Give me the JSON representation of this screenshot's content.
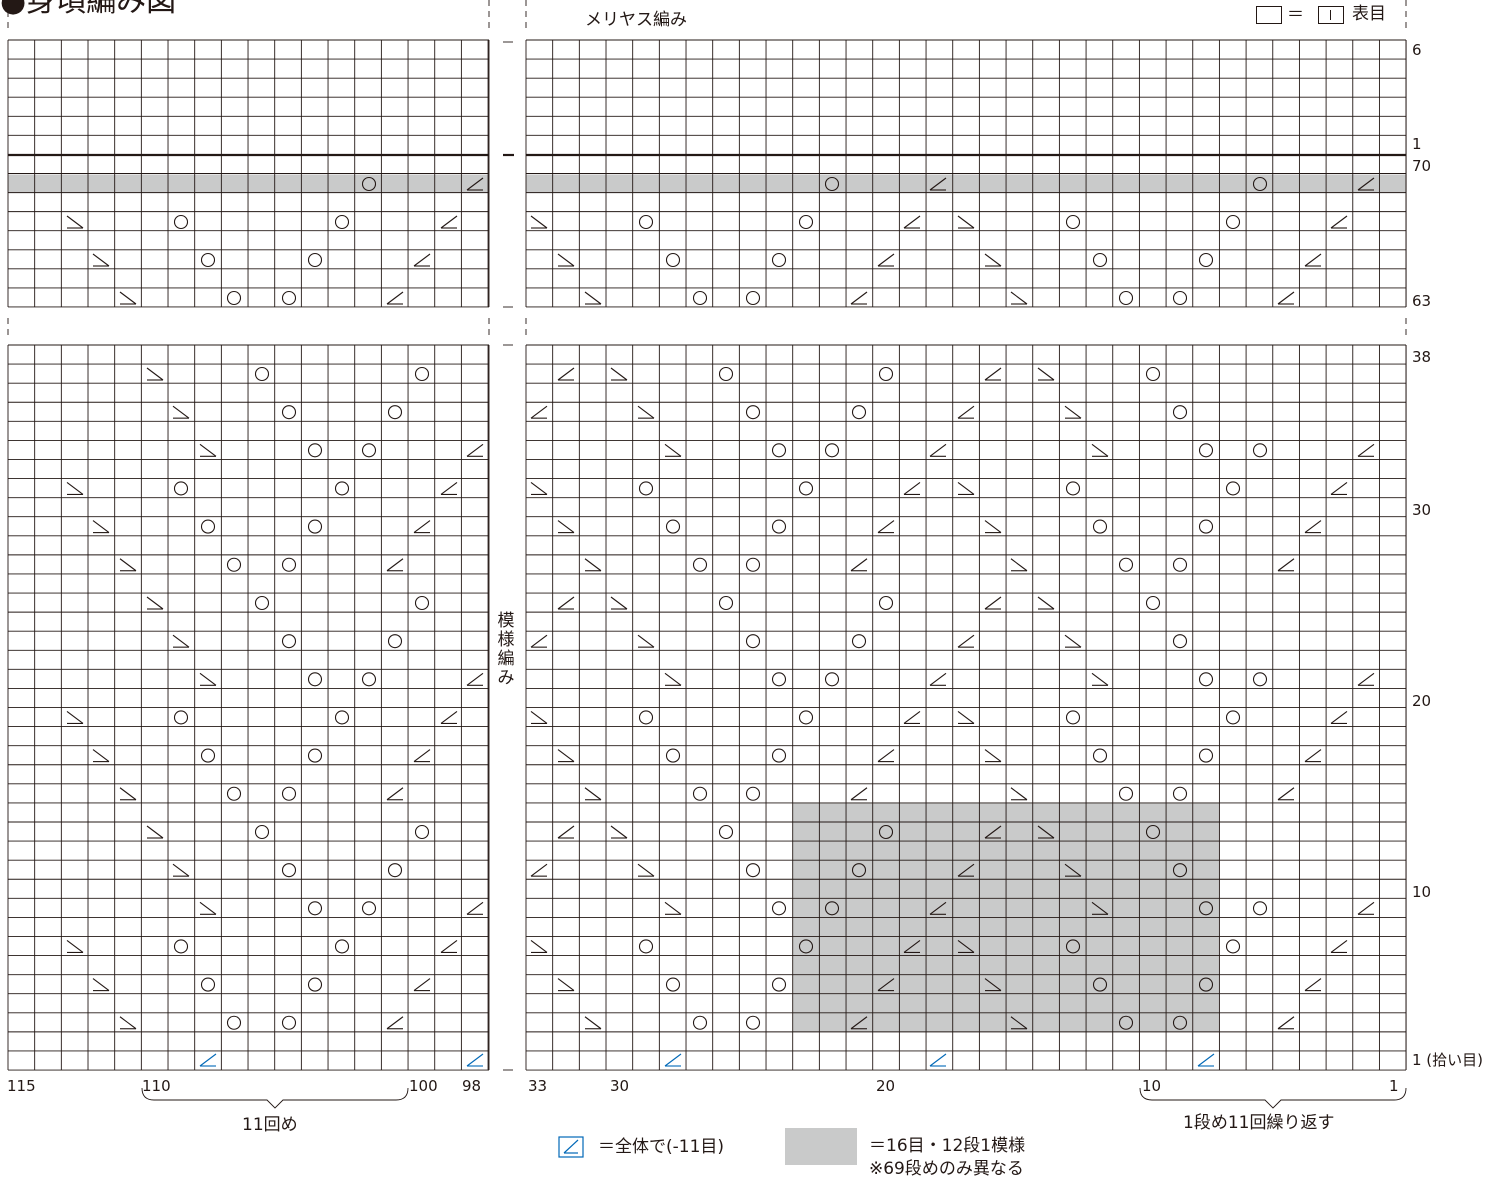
{
  "title": "●身頃編み図",
  "labels": {
    "stockinette": "メリヤス編み",
    "pattern_vertical": "模様編み",
    "knit_key_eq": "＝",
    "knit_key_label": "表目",
    "row_num_top": "6",
    "row_num_1": "1",
    "row_num_70": "70",
    "row_num_63": "63",
    "row_num_38": "38",
    "row_num_30": "30",
    "row_num_20": "20",
    "row_num_10": "10",
    "row_num_pickup": "1 (拾い目)",
    "col_115": "115",
    "col_110": "110",
    "col_100": "100",
    "col_98": "98",
    "col_33": "33",
    "col_30": "30",
    "col_20": "20",
    "col_10": "10",
    "col_1": "1",
    "repeat_left": "11回め",
    "repeat_right": "1段め11回繰り返す",
    "legend_decrease": "＝全体で(-11目)",
    "legend_pattern_line1": "＝16目・12段1模様",
    "legend_pattern_line2": "※69段めのみ異なる"
  },
  "colors": {
    "grid_line": "#231815",
    "shade": "#c9caca",
    "decrease_blue": "#0068b7"
  },
  "icons": {
    "yarn_over": "circle-symbol",
    "left_decrease": "left-k2tog-symbol",
    "right_decrease": "right-k2tog-symbol"
  }
}
